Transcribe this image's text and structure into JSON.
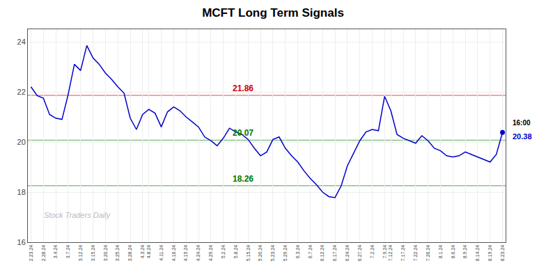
{
  "chart_data": {
    "type": "line",
    "title": "MCFT Long Term Signals",
    "categories": [
      "2.23.24",
      null,
      "2.28.24",
      null,
      "3.4.24",
      null,
      "3.7.24",
      null,
      "3.12.24",
      null,
      "3.15.24",
      null,
      "3.20.24",
      null,
      "3.25.24",
      null,
      "3.28.24",
      null,
      "4.3.24",
      "4.8.24",
      null,
      "4.11.24",
      null,
      "4.16.24",
      null,
      "4.19.24",
      null,
      "4.24.24",
      null,
      "4.29.24",
      null,
      "5.2.24",
      null,
      "5.8.24",
      null,
      "5.15.24",
      null,
      "5.20.24",
      null,
      "5.23.24",
      null,
      "5.29.24",
      null,
      "6.3.24",
      null,
      "6.7.24",
      null,
      "6.12.24",
      null,
      "6.17.24",
      null,
      "6.24.24",
      null,
      "6.27.24",
      null,
      "7.2.24",
      null,
      "7.9.24",
      "7.12.24",
      null,
      "7.17.24",
      null,
      "7.22.24",
      null,
      "7.26.24",
      null,
      "8.1.24",
      null,
      "8.6.24",
      null,
      "8.9.24",
      null,
      "8.14.24",
      null,
      "8.19.24",
      null,
      "8.23.24"
    ],
    "values": [
      22.2,
      21.85,
      21.75,
      21.1,
      20.95,
      20.9,
      21.9,
      23.1,
      22.85,
      23.85,
      23.35,
      23.1,
      22.75,
      22.5,
      22.2,
      21.95,
      20.95,
      20.5,
      21.1,
      21.3,
      21.15,
      20.6,
      21.2,
      21.4,
      21.25,
      21.0,
      20.8,
      20.6,
      20.2,
      20.05,
      19.85,
      20.15,
      20.55,
      20.4,
      20.3,
      20.1,
      19.75,
      19.45,
      19.6,
      20.1,
      20.2,
      19.75,
      19.45,
      19.2,
      18.85,
      18.55,
      18.3,
      18.0,
      17.82,
      17.78,
      18.25,
      19.05,
      19.55,
      20.05,
      20.4,
      20.5,
      20.45,
      21.82,
      21.25,
      20.3,
      20.15,
      20.05,
      19.95,
      20.25,
      20.05,
      19.75,
      19.65,
      19.45,
      19.4,
      19.45,
      19.6,
      19.5,
      19.4,
      19.3,
      19.2,
      19.5,
      20.38
    ],
    "color": "#0000cc",
    "ylim": [
      16,
      24.5
    ],
    "yticks": [
      16,
      18,
      20,
      22,
      24
    ],
    "grid": true,
    "reference_lines": [
      {
        "value": 21.86,
        "label": "21.86",
        "color": "#cc0000"
      },
      {
        "value": 20.07,
        "label": "20.07",
        "color": "#007700"
      },
      {
        "value": 18.26,
        "label": "18.26",
        "color": "#007700"
      }
    ],
    "end_point": {
      "value": 20.38,
      "label": "20.38",
      "time_label": "16:00"
    },
    "annotations": [
      {
        "text": "Stock Traders Daily"
      }
    ]
  }
}
